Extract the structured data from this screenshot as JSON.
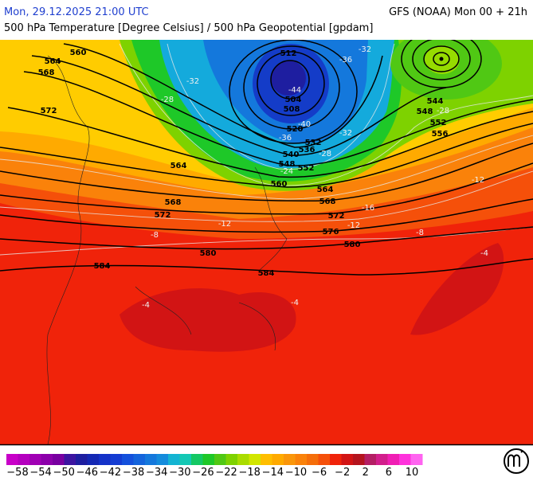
{
  "header": {
    "datetime": "Mon, 29.12.2025 21:00 UTC",
    "model": "GFS (NOAA) Mon 00 + 21h",
    "subtitle": "500 hPa Temperature [Degree Celsius] / 500 hPa Geopotential [gpdam]"
  },
  "colorbar": {
    "labels": [
      "−58",
      "−54",
      "−50",
      "−46",
      "−42",
      "−38",
      "−34",
      "−30",
      "−26",
      "−22",
      "−18",
      "−14",
      "−10",
      "−6",
      "−2",
      "2",
      "6",
      "10"
    ]
  },
  "geopotential_labels": [
    560,
    564,
    568,
    572,
    512,
    504,
    508,
    520,
    532,
    536,
    540,
    548,
    552,
    560,
    564,
    568,
    572,
    576,
    580,
    584,
    564,
    568,
    572,
    580,
    584,
    544,
    548,
    552,
    556
  ],
  "temperature_labels": [
    -32,
    -36,
    -32,
    -44,
    -40,
    -36,
    -28,
    -28,
    -24,
    -28,
    -32,
    -12,
    -8,
    -8,
    -12,
    -4,
    -4,
    -4,
    -12,
    -16
  ]
}
